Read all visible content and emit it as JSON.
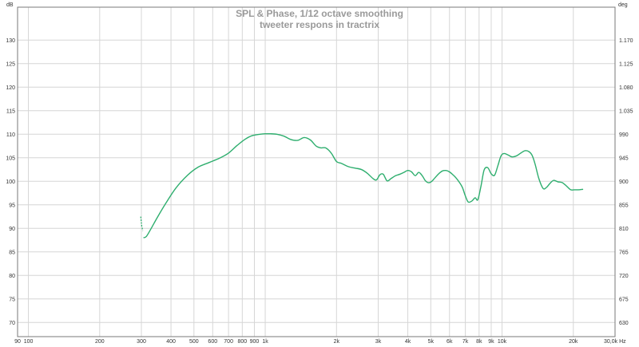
{
  "chart_data": {
    "type": "line",
    "title": "SPL & Phase, 1/12 octave smoothing",
    "subtitle": "tweeter respons in tractrix",
    "y_left_unit": "dB",
    "y_right_unit": "deg",
    "x_unit": "Hz",
    "x_scale": "log",
    "xlim": [
      90,
      30000
    ],
    "ylim": [
      67,
      137
    ],
    "y_right_lim": [
      603,
      1233
    ],
    "grid": true,
    "colors": {
      "series": "#2eae6e",
      "grid": "#d6d6d6",
      "frame": "#7a7a7a",
      "title": "#9a9a9a"
    },
    "x_ticks": [
      {
        "value": 90,
        "label": "90"
      },
      {
        "value": 100,
        "label": "100"
      },
      {
        "value": 200,
        "label": "200"
      },
      {
        "value": 300,
        "label": "300"
      },
      {
        "value": 400,
        "label": "400"
      },
      {
        "value": 500,
        "label": "500"
      },
      {
        "value": 600,
        "label": "600"
      },
      {
        "value": 700,
        "label": "700"
      },
      {
        "value": 800,
        "label": "800"
      },
      {
        "value": 900,
        "label": "900"
      },
      {
        "value": 1000,
        "label": "1k"
      },
      {
        "value": 2000,
        "label": "2k"
      },
      {
        "value": 3000,
        "label": "3k"
      },
      {
        "value": 4000,
        "label": "4k"
      },
      {
        "value": 5000,
        "label": "5k"
      },
      {
        "value": 6000,
        "label": "6k"
      },
      {
        "value": 7000,
        "label": "7k"
      },
      {
        "value": 8000,
        "label": "8k"
      },
      {
        "value": 9000,
        "label": "9k"
      },
      {
        "value": 10000,
        "label": "10k"
      },
      {
        "value": 20000,
        "label": "20k"
      },
      {
        "value": 30000,
        "label": "30,0k Hz"
      }
    ],
    "y_ticks_left": [
      {
        "value": 70,
        "label": "70"
      },
      {
        "value": 75,
        "label": "75"
      },
      {
        "value": 80,
        "label": "80"
      },
      {
        "value": 85,
        "label": "85"
      },
      {
        "value": 90,
        "label": "90"
      },
      {
        "value": 95,
        "label": "95"
      },
      {
        "value": 100,
        "label": "100"
      },
      {
        "value": 105,
        "label": "105"
      },
      {
        "value": 110,
        "label": "110"
      },
      {
        "value": 115,
        "label": "115"
      },
      {
        "value": 120,
        "label": "120"
      },
      {
        "value": 125,
        "label": "125"
      },
      {
        "value": 130,
        "label": "130"
      }
    ],
    "y_ticks_right": [
      {
        "value": 630,
        "label": "630"
      },
      {
        "value": 675,
        "label": "675"
      },
      {
        "value": 720,
        "label": "720"
      },
      {
        "value": 765,
        "label": "765"
      },
      {
        "value": 810,
        "label": "810"
      },
      {
        "value": 855,
        "label": "855"
      },
      {
        "value": 900,
        "label": "900"
      },
      {
        "value": 945,
        "label": "945"
      },
      {
        "value": 990,
        "label": "990"
      },
      {
        "value": 1035,
        "label": "1.035"
      },
      {
        "value": 1080,
        "label": "1.080"
      },
      {
        "value": 1125,
        "label": "1.125"
      },
      {
        "value": 1170,
        "label": "1.170"
      }
    ],
    "series": [
      {
        "dash_segment": [
          [
            298,
            92.5
          ],
          [
            301,
            90.5
          ],
          [
            304,
            89.5
          ]
        ],
        "x": [
          306,
          315,
          330,
          350,
          380,
          420,
          470,
          520,
          580,
          640,
          700,
          760,
          820,
          880,
          950,
          1000,
          1050,
          1120,
          1200,
          1280,
          1370,
          1460,
          1550,
          1640,
          1720,
          1800,
          1900,
          2000,
          2100,
          2250,
          2400,
          2550,
          2700,
          2850,
          2950,
          3050,
          3150,
          3270,
          3400,
          3550,
          3700,
          3850,
          4000,
          4150,
          4300,
          4450,
          4600,
          4750,
          4900,
          5050,
          5200,
          5400,
          5600,
          5800,
          6000,
          6200,
          6400,
          6600,
          6800,
          7000,
          7200,
          7450,
          7700,
          7900,
          8150,
          8400,
          8700,
          9000,
          9300,
          9600,
          9900,
          10200,
          10600,
          11000,
          11500,
          12000,
          12500,
          13000,
          13400,
          13800,
          14300,
          14900,
          15400,
          15900,
          16500,
          17200,
          18000,
          18800,
          19500,
          20200,
          21000,
          22000
        ],
        "values": [
          88.0,
          88.3,
          90.0,
          92.3,
          95.3,
          98.6,
          101.3,
          103.0,
          104.0,
          104.9,
          106.0,
          107.6,
          108.9,
          109.7,
          110.0,
          110.1,
          110.1,
          110.0,
          109.6,
          108.9,
          108.7,
          109.3,
          108.8,
          107.5,
          107.1,
          107.1,
          106.0,
          104.2,
          103.8,
          103.1,
          102.8,
          102.5,
          101.7,
          100.6,
          100.3,
          101.4,
          101.5,
          100.1,
          100.6,
          101.2,
          101.5,
          101.9,
          102.3,
          102.0,
          101.2,
          101.9,
          101.2,
          100.1,
          99.7,
          100.0,
          100.7,
          101.6,
          102.2,
          102.3,
          102.0,
          101.4,
          100.7,
          99.8,
          98.7,
          96.9,
          95.6,
          95.8,
          96.5,
          96.1,
          99.0,
          102.4,
          102.9,
          101.6,
          101.3,
          103.3,
          105.4,
          105.9,
          105.6,
          105.2,
          105.4,
          106.0,
          106.5,
          106.3,
          105.5,
          103.6,
          100.6,
          98.5,
          98.7,
          99.5,
          100.2,
          99.9,
          99.7,
          98.9,
          98.2,
          98.2,
          98.2,
          98.3
        ]
      }
    ]
  }
}
